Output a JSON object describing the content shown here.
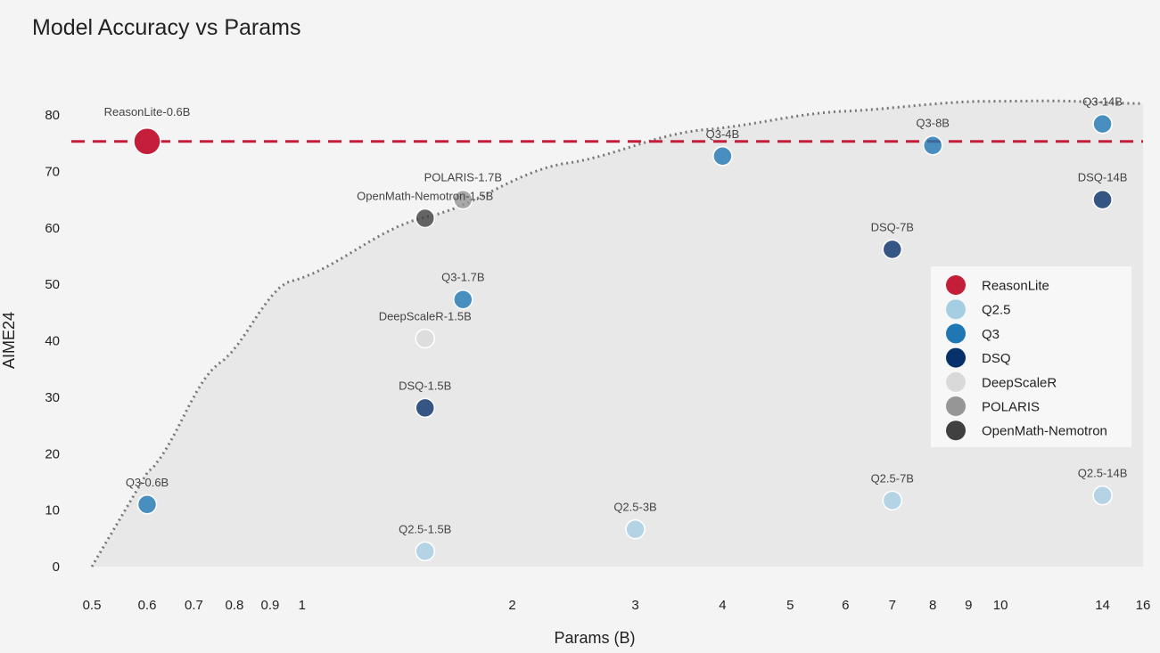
{
  "chart_data": {
    "type": "scatter",
    "title": "Model Accuracy vs Params",
    "xlabel": "Params (B)",
    "ylabel": "AIME24",
    "xscale": "log",
    "xlim": [
      0.5,
      16
    ],
    "ylim": [
      0,
      82
    ],
    "xticks": [
      0.5,
      0.6,
      0.7,
      0.8,
      0.9,
      1,
      2,
      3,
      4,
      5,
      6,
      7,
      8,
      9,
      10,
      14,
      16
    ],
    "xtick_labels": [
      "0.5",
      "0.6",
      "0.7",
      "0.8",
      "0.9",
      "1",
      "2",
      "3",
      "4",
      "5",
      "6",
      "7",
      "8",
      "9",
      "10",
      "14",
      "16"
    ],
    "yticks": [
      0,
      10,
      20,
      30,
      40,
      50,
      60,
      70,
      80
    ],
    "grid": false,
    "legend_position": "right",
    "reference_line": {
      "y": 75.3,
      "color": "#c41e3a",
      "style": "dashed"
    },
    "frontier_curve": {
      "style": "dotted",
      "color": "#777777",
      "fill": "#e8e8e8",
      "x": [
        0.5,
        0.6,
        0.757,
        0.95,
        1.5,
        2.35,
        3.7,
        5.84,
        9.2,
        12,
        16
      ],
      "y": [
        0,
        16.6,
        35.8,
        50.3,
        61.9,
        71.3,
        77.3,
        80.6,
        82.4,
        82.5,
        82.0
      ]
    },
    "series": [
      {
        "name": "ReasonLite",
        "color": "#c41e3a",
        "points": [
          {
            "label": "ReasonLite-0.6B",
            "x": 0.6,
            "y": 75.3
          }
        ]
      },
      {
        "name": "Q2.5",
        "color": "#a6cee3",
        "points": [
          {
            "label": "Q2.5-1.5B",
            "x": 1.5,
            "y": 2.7
          },
          {
            "label": "Q2.5-3B",
            "x": 3,
            "y": 6.6
          },
          {
            "label": "Q2.5-7B",
            "x": 7,
            "y": 11.7
          },
          {
            "label": "Q2.5-14B",
            "x": 14,
            "y": 12.6
          }
        ]
      },
      {
        "name": "Q3",
        "color": "#1f78b4",
        "points": [
          {
            "label": "Q3-0.6B",
            "x": 0.6,
            "y": 11.0
          },
          {
            "label": "Q3-1.7B",
            "x": 1.7,
            "y": 47.3
          },
          {
            "label": "Q3-4B",
            "x": 4,
            "y": 72.7
          },
          {
            "label": "Q3-8B",
            "x": 8,
            "y": 74.6
          },
          {
            "label": "Q3-14B",
            "x": 14,
            "y": 78.4
          }
        ]
      },
      {
        "name": "DSQ",
        "color": "#08306b",
        "points": [
          {
            "label": "DSQ-1.5B",
            "x": 1.5,
            "y": 28.1
          },
          {
            "label": "DSQ-7B",
            "x": 7,
            "y": 56.2
          },
          {
            "label": "DSQ-14B",
            "x": 14,
            "y": 65.0
          }
        ]
      },
      {
        "name": "DeepScaleR",
        "color": "#d9d9d9",
        "points": [
          {
            "label": "DeepScaleR-1.5B",
            "x": 1.5,
            "y": 40.4
          }
        ]
      },
      {
        "name": "POLARIS",
        "color": "#969696",
        "points": [
          {
            "label": "POLARIS-1.7B",
            "x": 1.7,
            "y": 65.0
          }
        ]
      },
      {
        "name": "OpenMath-Nemotron",
        "color": "#404040",
        "points": [
          {
            "label": "OpenMath-Nemotron-1.5B",
            "x": 1.5,
            "y": 61.7
          }
        ]
      }
    ]
  }
}
